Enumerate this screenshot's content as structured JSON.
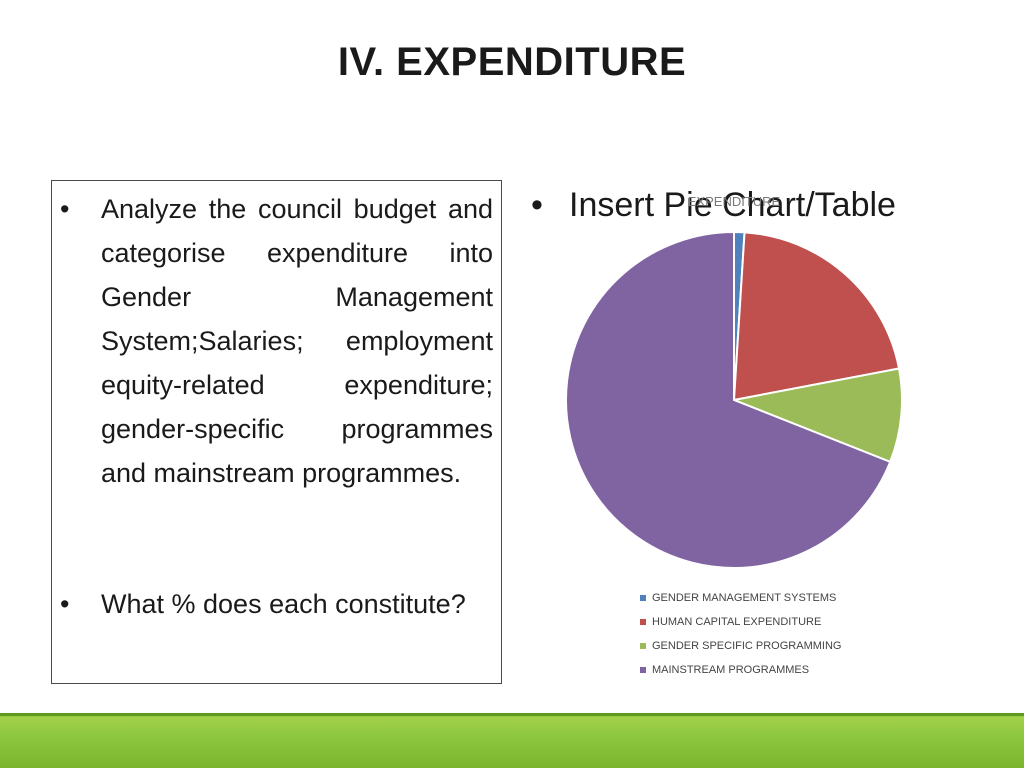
{
  "slide": {
    "title": "IV. EXPENDITURE"
  },
  "left_box": {
    "bullets": [
      {
        "marker": "•",
        "text": "Analyze the council budget and categorise expenditure into Gender Management System;Salaries; employment equity-related expenditure; gender-specific programmes and mainstream programmes."
      },
      {
        "marker": "•",
        "text": "What % does each constitute?"
      }
    ]
  },
  "right_bullet": {
    "marker": "•",
    "text": "Insert Pie Chart/Table"
  },
  "chart_data": {
    "type": "pie",
    "title": "EXPENDITURE",
    "categories": [
      "GENDER MANAGEMENT SYSTEMS",
      "HUMAN CAPITAL EXPENDITURE",
      "GENDER SPECIFIC PROGRAMMING",
      "MAINSTREAM PROGRAMMES"
    ],
    "values": [
      1,
      21,
      9,
      69
    ],
    "colors": [
      "#4f81bd",
      "#c0504d",
      "#9bbb59",
      "#8064a2"
    ],
    "legend_position": "bottom"
  },
  "footer": {
    "color": "#8cc63f"
  }
}
